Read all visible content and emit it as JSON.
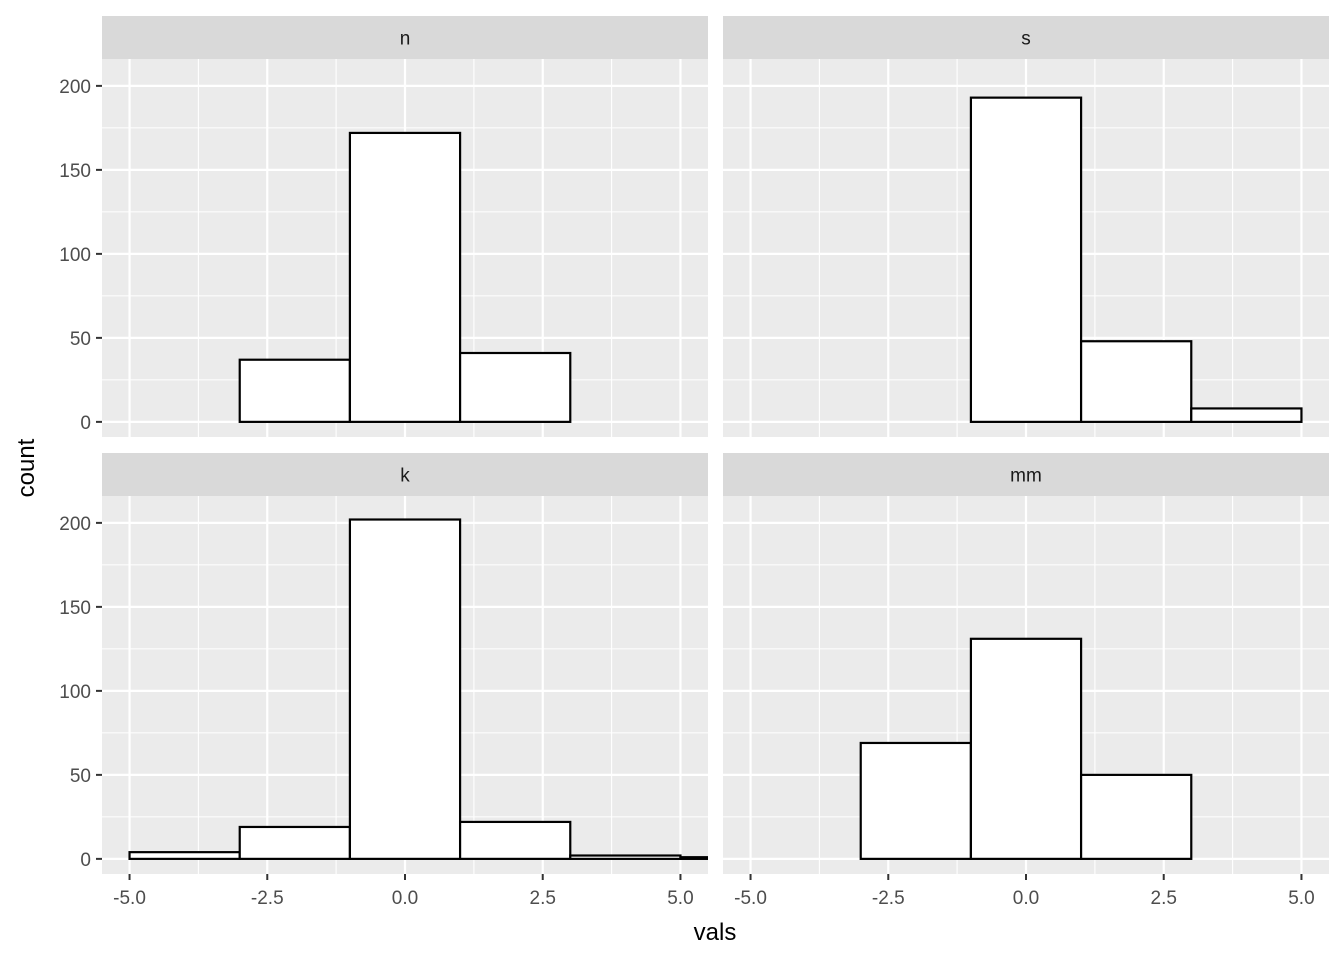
{
  "chart_data": {
    "type": "bar",
    "subtype": "faceted-histogram",
    "xlabel": "vals",
    "ylabel": "count",
    "xlim": [
      -5.5,
      5.5
    ],
    "ylim": [
      -9,
      216
    ],
    "x_ticks": [
      -5.0,
      -2.5,
      0.0,
      2.5,
      5.0
    ],
    "x_tick_labels": [
      "-5.0",
      "-2.5",
      "0.0",
      "2.5",
      "5.0"
    ],
    "y_ticks": [
      0,
      50,
      100,
      150,
      200
    ],
    "y_tick_labels": [
      "0",
      "50",
      "100",
      "150",
      "200"
    ],
    "bin_width": 2,
    "bin_centers": [
      -4,
      -2,
      0,
      2,
      4,
      6
    ],
    "grid": true,
    "colors": {
      "panel": "#ebebeb",
      "strip": "#d9d9d9",
      "bar_fill": "#ffffff",
      "bar_outline": "#000000"
    },
    "panels": [
      {
        "label": "n",
        "values": [
          0,
          37,
          172,
          41,
          0,
          0
        ]
      },
      {
        "label": "s",
        "values": [
          0,
          0,
          193,
          48,
          8,
          0
        ]
      },
      {
        "label": "k",
        "values": [
          4,
          19,
          202,
          22,
          2,
          1
        ]
      },
      {
        "label": "mm",
        "values": [
          0,
          69,
          131,
          50,
          0,
          0
        ]
      }
    ]
  }
}
